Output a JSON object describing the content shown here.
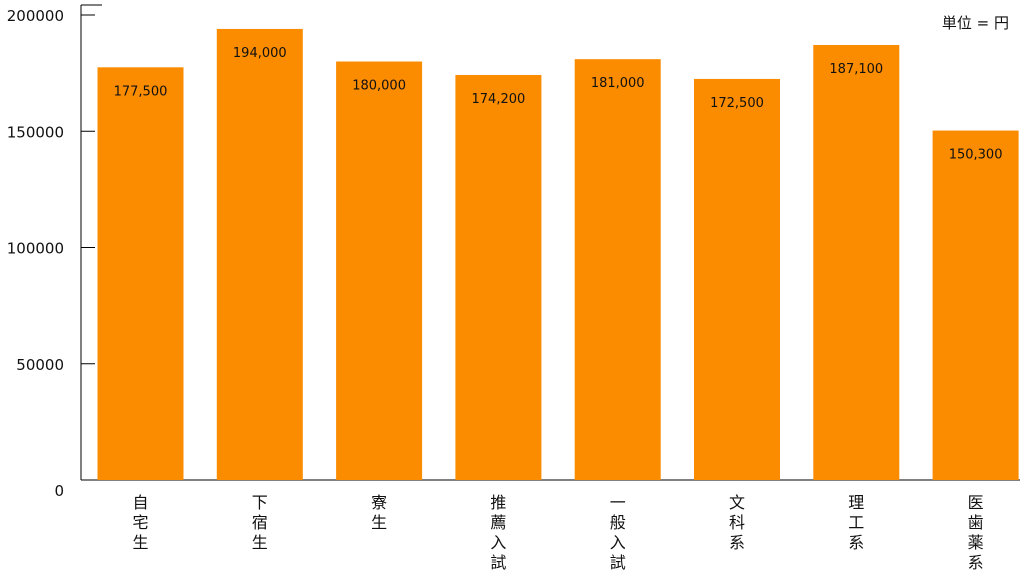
{
  "chart_data": {
    "type": "bar",
    "categories": [
      "自宅生",
      "下宿生",
      "寮生",
      "推薦入試",
      "一般入試",
      "文科系",
      "理工系",
      "医歯薬系"
    ],
    "values": [
      177500,
      194000,
      180000,
      174200,
      181000,
      172500,
      187100,
      150300
    ],
    "value_labels": [
      "177,500",
      "194,000",
      "180,000",
      "174,200",
      "181,000",
      "172,500",
      "187,100",
      "150,300"
    ],
    "yticks": [
      "0",
      "50000",
      "100000",
      "150000",
      "200000"
    ],
    "ylim": [
      0,
      200000
    ],
    "unit_label": "単位 = 円",
    "colors": {
      "bar": "#fb8c00",
      "axis": "#000000"
    },
    "grid": false,
    "legend": false
  }
}
